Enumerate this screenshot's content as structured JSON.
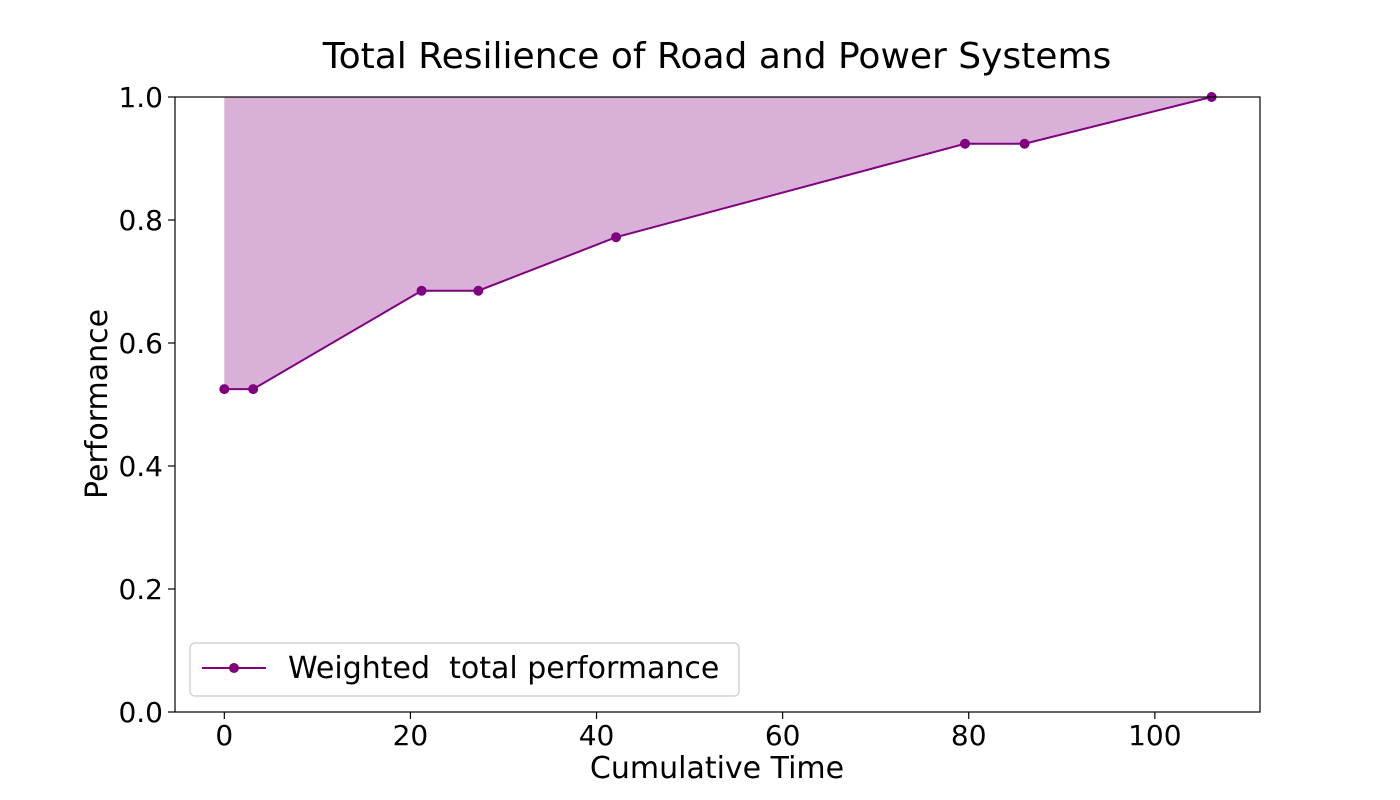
{
  "chart_data": {
    "type": "line",
    "title": "Total Resilience of Road and Power Systems",
    "xlabel": "Cumulative Time",
    "ylabel": "Performance",
    "xlim": [
      -5.3,
      111.3
    ],
    "ylim": [
      0.0,
      1.0
    ],
    "xticks": [
      0,
      20,
      40,
      60,
      80,
      100
    ],
    "xtick_labels": [
      "0",
      "20",
      "40",
      "60",
      "80",
      "100"
    ],
    "yticks": [
      0.0,
      0.2,
      0.4,
      0.6,
      0.8,
      1.0
    ],
    "ytick_labels": [
      "0.0",
      "0.2",
      "0.4",
      "0.6",
      "0.8",
      "1.0"
    ],
    "grid": false,
    "legend_position": "lower-left",
    "fill_between_series_and": 1.0,
    "series": [
      {
        "name": "Weighted  total performance",
        "color": "#800080",
        "fill_color": "#d8b0d8",
        "marker": "circle",
        "x": [
          0,
          3.1,
          21.2,
          27.3,
          42.1,
          79.6,
          86.0,
          106.1
        ],
        "y": [
          0.525,
          0.525,
          0.685,
          0.685,
          0.772,
          0.924,
          0.924,
          1.0
        ]
      }
    ]
  }
}
